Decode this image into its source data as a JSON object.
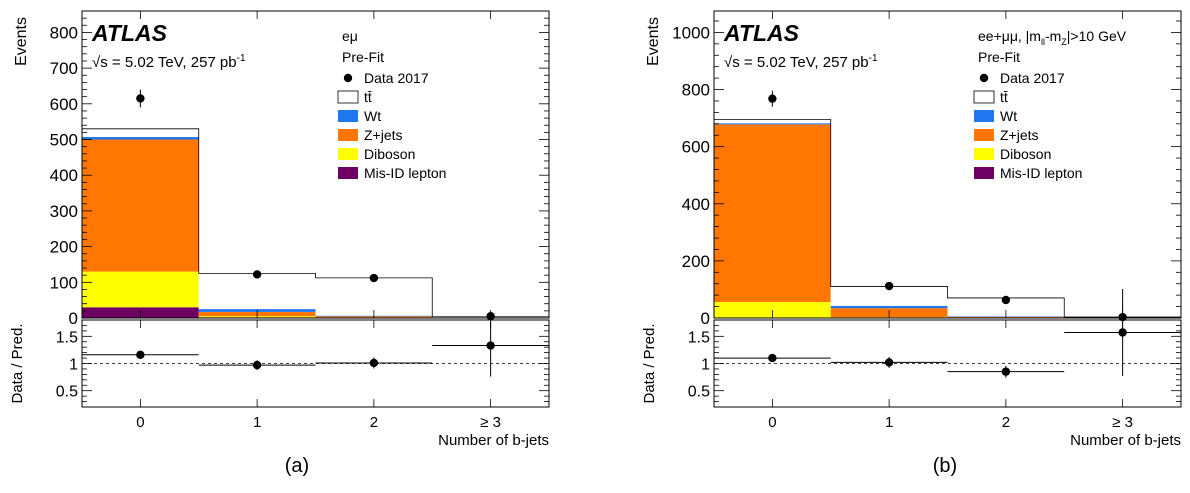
{
  "chart_data": [
    {
      "type": "bar",
      "panel_caption": "(a)",
      "experiment": "ATLAS",
      "energy_text": "= 5.02 TeV, 257 pb",
      "energy_sup": "-1",
      "channel": "eμ",
      "fit_label": "Pre-Fit",
      "xlabel": "Number of b-jets",
      "ylabel": "Events",
      "ratio_ylabel": "Data / Pred.",
      "categories": [
        "0",
        "1",
        "2",
        "≥ 3"
      ],
      "ylim": [
        0,
        860
      ],
      "yticks": [
        0,
        100,
        200,
        300,
        400,
        500,
        600,
        700,
        800
      ],
      "ratio_ylim": [
        0.2,
        1.8
      ],
      "ratio_yticks": [
        0.5,
        1,
        1.5
      ],
      "legend": [
        {
          "label": "Data 2017",
          "key": "data"
        },
        {
          "label": "tt̄",
          "key": "ttbar"
        },
        {
          "label": "Wt",
          "key": "wt"
        },
        {
          "label": "Z+jets",
          "key": "zjets"
        },
        {
          "label": "Diboson",
          "key": "diboson"
        },
        {
          "label": "Mis-ID lepton",
          "key": "misid"
        }
      ],
      "series": [
        {
          "name": "Mis-ID lepton",
          "key": "misid",
          "values": [
            30,
            2,
            0.5,
            0.2
          ]
        },
        {
          "name": "Diboson",
          "key": "diboson",
          "values": [
            100,
            3,
            1,
            0.2
          ]
        },
        {
          "name": "Z+jets",
          "key": "zjets",
          "values": [
            370,
            12,
            3,
            0.5
          ]
        },
        {
          "name": "Wt",
          "key": "wt",
          "values": [
            7,
            8,
            2,
            0.5
          ]
        },
        {
          "name": "tt̄",
          "key": "ttbar",
          "values": [
            23,
            100,
            106,
            2
          ]
        }
      ],
      "data": [
        {
          "value": 615,
          "err": 25
        },
        {
          "value": 122,
          "err": 11
        },
        {
          "value": 112,
          "err": 10.5
        },
        {
          "value": 5,
          "err": 2.2
        }
      ],
      "ratio": [
        {
          "value": 1.16,
          "err": 0.05
        },
        {
          "value": 0.97,
          "err": 0.09
        },
        {
          "value": 1.01,
          "err": 0.1
        },
        {
          "value": 1.33,
          "err": 0.57
        }
      ]
    },
    {
      "type": "bar",
      "panel_caption": "(b)",
      "experiment": "ATLAS",
      "energy_text": "= 5.02 TeV, 257 pb",
      "energy_sup": "-1",
      "channel": "ee+μμ, |m",
      "channel_sub1": "ll",
      "channel_mid": "-m",
      "channel_sub2": "Z",
      "channel_end": "|>10 GeV",
      "fit_label": "Pre-Fit",
      "xlabel": "Number of b-jets",
      "ylabel": "Events",
      "ratio_ylabel": "Data / Pred.",
      "categories": [
        "0",
        "1",
        "2",
        "≥ 3"
      ],
      "ylim": [
        0,
        1075
      ],
      "yticks": [
        0,
        200,
        400,
        600,
        800,
        1000
      ],
      "ratio_ylim": [
        0.2,
        1.8
      ],
      "ratio_yticks": [
        0.5,
        1,
        1.5
      ],
      "legend": [
        {
          "label": "Data 2017",
          "key": "data"
        },
        {
          "label": "tt̄",
          "key": "ttbar"
        },
        {
          "label": "Wt",
          "key": "wt"
        },
        {
          "label": "Z+jets",
          "key": "zjets"
        },
        {
          "label": "Diboson",
          "key": "diboson"
        },
        {
          "label": "Mis-ID lepton",
          "key": "misid"
        }
      ],
      "series": [
        {
          "name": "Mis-ID lepton",
          "key": "misid",
          "values": [
            1,
            0.5,
            0.2,
            0.1
          ]
        },
        {
          "name": "Diboson",
          "key": "diboson",
          "values": [
            55,
            2,
            1,
            0.2
          ]
        },
        {
          "name": "Z+jets",
          "key": "zjets",
          "values": [
            622,
            32,
            3,
            0.5
          ]
        },
        {
          "name": "Wt",
          "key": "wt",
          "values": [
            4,
            8,
            2,
            0.5
          ]
        },
        {
          "name": "tt̄",
          "key": "ttbar",
          "values": [
            13,
            68,
            64,
            2
          ]
        }
      ],
      "data": [
        {
          "value": 768,
          "err": 28
        },
        {
          "value": 112,
          "err": 10.6
        },
        {
          "value": 63,
          "err": 8
        },
        {
          "value": 3,
          "err": 1.7
        }
      ],
      "ratio": [
        {
          "value": 1.1,
          "err": 0.04
        },
        {
          "value": 1.02,
          "err": 0.1
        },
        {
          "value": 0.85,
          "err": 0.11
        },
        {
          "value": 1.57,
          "err": 0.8
        }
      ]
    }
  ],
  "colors": {
    "ttbar": "#ffffff",
    "wt": "#1f78f0",
    "zjets": "#ff7700",
    "diboson": "#ffff00",
    "misid": "#6e0063",
    "data": "#000000"
  }
}
